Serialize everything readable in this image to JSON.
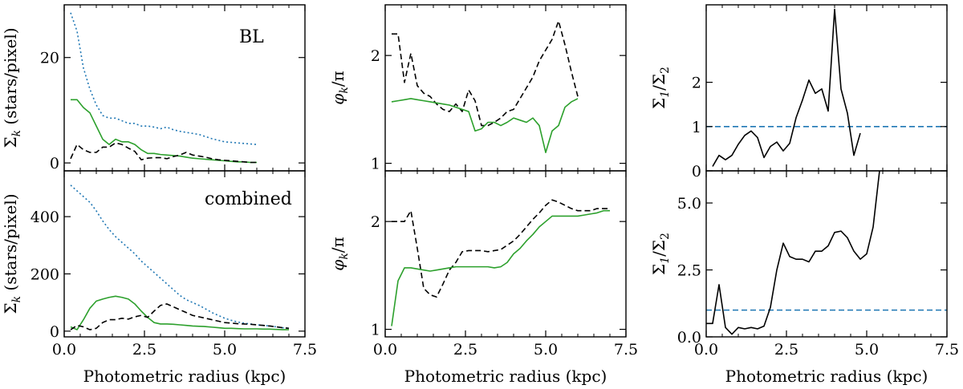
{
  "chart_data": [
    {
      "type": "line",
      "panel": "top-left",
      "ylabel": "Σ_k (stars/pixel)",
      "ylabel_text": {
        "main": "Σ",
        "sub": "k",
        "rest": " (stars/pixel)"
      },
      "xlabel": "",
      "annotation": "BL",
      "xlim": [
        0,
        7.5
      ],
      "ylim": [
        -1.5,
        30
      ],
      "xticks": [
        0,
        2.5,
        5,
        7.5
      ],
      "xtick_labels": [],
      "yticks": [
        0,
        20
      ],
      "ytick_labels": [
        "0",
        "20"
      ],
      "series": [
        {
          "name": "dotted-blue",
          "color": "#1f77b4",
          "dash": "dotted",
          "x": [
            0.2,
            0.4,
            0.6,
            0.8,
            1.0,
            1.2,
            1.4,
            1.6,
            1.8,
            2.0,
            2.2,
            2.4,
            2.6,
            2.8,
            3.0,
            3.2,
            3.4,
            3.6,
            3.8,
            4.0,
            4.2,
            4.4,
            4.6,
            4.8,
            5.0,
            5.2,
            5.4,
            5.6,
            5.8,
            6.0
          ],
          "y": [
            28.5,
            25,
            18,
            14,
            11,
            9,
            8.5,
            8.5,
            8,
            7.5,
            7.5,
            7,
            7,
            6.8,
            6.5,
            6.8,
            6.3,
            6,
            5.8,
            5.6,
            5.4,
            5,
            4.6,
            4.3,
            4,
            3.9,
            3.8,
            3.7,
            3.6,
            3.5
          ]
        },
        {
          "name": "solid-green",
          "color": "#2ca02c",
          "dash": "solid",
          "x": [
            0.2,
            0.4,
            0.6,
            0.8,
            1.0,
            1.2,
            1.4,
            1.6,
            1.8,
            2.0,
            2.2,
            2.4,
            2.6,
            2.8,
            3.0,
            3.2,
            3.4,
            3.6,
            3.8,
            4.0,
            4.2,
            4.4,
            4.6,
            4.8,
            5.0,
            5.2,
            5.4,
            5.6,
            5.8,
            6.0
          ],
          "y": [
            12,
            12,
            10.5,
            9.5,
            7,
            4.5,
            3.5,
            4.5,
            4,
            4,
            3.5,
            2.5,
            1.8,
            1.8,
            1.6,
            1.5,
            1.4,
            1.3,
            1.1,
            0.9,
            0.8,
            0.7,
            0.6,
            0.5,
            0.4,
            0.3,
            0.2,
            0.2,
            0.1,
            0.1
          ]
        },
        {
          "name": "dashed-black",
          "color": "#000000",
          "dash": "dashed",
          "x": [
            0.2,
            0.4,
            0.6,
            0.8,
            1.0,
            1.2,
            1.4,
            1.6,
            1.8,
            2.0,
            2.2,
            2.4,
            2.6,
            2.8,
            3.0,
            3.2,
            3.4,
            3.6,
            3.8,
            4.0,
            4.2,
            4.4,
            4.6,
            4.8,
            5.0,
            5.2,
            5.4,
            5.6,
            5.8,
            6.0
          ],
          "y": [
            0.8,
            3.5,
            2.5,
            2,
            2,
            3,
            3,
            3.8,
            3.5,
            2.8,
            2.2,
            0.6,
            0.9,
            1,
            1,
            0.8,
            1.2,
            1.5,
            2,
            1.5,
            1.3,
            1.1,
            0.8,
            0.6,
            0.5,
            0.4,
            0.3,
            0.2,
            0.1,
            0.1
          ]
        }
      ]
    },
    {
      "type": "line",
      "panel": "bottom-left",
      "ylabel": "Σ_k (stars/pixel)",
      "ylabel_text": {
        "main": "Σ",
        "sub": "k",
        "rest": " (stars/pixel)"
      },
      "xlabel": "Photometric radius (kpc)",
      "annotation": "combined",
      "xlim": [
        0,
        7.5
      ],
      "ylim": [
        -20,
        560
      ],
      "xticks": [
        0,
        2.5,
        5,
        7.5
      ],
      "xtick_labels": [
        "0.0",
        "2.5",
        "5.0",
        "7.5"
      ],
      "yticks": [
        0,
        200,
        400
      ],
      "ytick_labels": [
        "0",
        "200",
        "400"
      ],
      "series": [
        {
          "name": "dotted-blue",
          "color": "#1f77b4",
          "dash": "dotted",
          "x": [
            0.2,
            0.4,
            0.6,
            0.8,
            1.0,
            1.2,
            1.4,
            1.6,
            1.8,
            2.0,
            2.2,
            2.4,
            2.6,
            2.8,
            3.0,
            3.2,
            3.4,
            3.6,
            3.8,
            4.0,
            4.2,
            4.4,
            4.6,
            4.8,
            5.0,
            5.2,
            5.4,
            5.6,
            5.8,
            6.0,
            6.2,
            6.4,
            6.6,
            6.8,
            7.0
          ],
          "y": [
            510,
            490,
            470,
            450,
            420,
            385,
            355,
            330,
            310,
            290,
            270,
            245,
            225,
            205,
            185,
            165,
            145,
            125,
            110,
            100,
            90,
            78,
            65,
            55,
            45,
            38,
            32,
            28,
            25,
            22,
            20,
            18,
            15,
            12,
            10
          ]
        },
        {
          "name": "solid-green",
          "color": "#2ca02c",
          "dash": "solid",
          "x": [
            0.2,
            0.4,
            0.6,
            0.8,
            1.0,
            1.2,
            1.4,
            1.6,
            1.8,
            2.0,
            2.2,
            2.4,
            2.6,
            2.8,
            3.0,
            3.2,
            3.4,
            3.6,
            3.8,
            4.0,
            4.2,
            4.4,
            4.6,
            4.8,
            5.0,
            5.2,
            5.4,
            5.6,
            5.8,
            6.0,
            6.2,
            6.4,
            6.6,
            6.8,
            7.0
          ],
          "y": [
            15,
            5,
            40,
            80,
            105,
            112,
            118,
            122,
            118,
            112,
            95,
            70,
            48,
            30,
            25,
            25,
            24,
            22,
            20,
            18,
            17,
            16,
            14,
            12,
            10,
            10,
            9,
            8,
            8,
            8,
            7,
            7,
            6,
            5,
            5
          ]
        },
        {
          "name": "dashed-black",
          "color": "#000000",
          "dash": "dashed",
          "x": [
            0.2,
            0.4,
            0.6,
            0.8,
            1.0,
            1.2,
            1.4,
            1.6,
            1.8,
            2.0,
            2.2,
            2.4,
            2.6,
            2.8,
            3.0,
            3.2,
            3.4,
            3.6,
            3.8,
            4.0,
            4.2,
            4.4,
            4.6,
            4.8,
            5.0,
            5.2,
            5.4,
            5.6,
            5.8,
            6.0,
            6.2,
            6.4,
            6.6,
            6.8,
            7.0
          ],
          "y": [
            5,
            20,
            15,
            5,
            10,
            30,
            40,
            40,
            45,
            42,
            50,
            55,
            48,
            70,
            90,
            95,
            85,
            75,
            65,
            55,
            50,
            45,
            40,
            35,
            30,
            28,
            26,
            25,
            24,
            22,
            20,
            18,
            15,
            12,
            10
          ]
        }
      ]
    },
    {
      "type": "line",
      "panel": "top-middle",
      "ylabel": "φ_k/π",
      "ylabel_text": {
        "main": "φ",
        "sub": "k",
        "rest": "/π"
      },
      "xlabel": "",
      "xlim": [
        0,
        7.5
      ],
      "ylim": [
        0.93,
        2.47
      ],
      "xticks": [
        0,
        2.5,
        5,
        7.5
      ],
      "xtick_labels": [],
      "yticks": [
        1,
        2
      ],
      "ytick_labels": [
        "1",
        "2"
      ],
      "series": [
        {
          "name": "dashed-black",
          "color": "#000000",
          "dash": "dashed",
          "x": [
            0.2,
            0.4,
            0.6,
            0.8,
            1.0,
            1.2,
            1.4,
            1.6,
            1.8,
            2.0,
            2.2,
            2.4,
            2.6,
            2.8,
            3.0,
            3.2,
            3.4,
            3.6,
            3.8,
            4.0,
            4.2,
            4.4,
            4.6,
            4.8,
            5.0,
            5.2,
            5.4,
            5.6,
            5.8,
            6.0
          ],
          "y": [
            2.2,
            2.2,
            1.75,
            2.02,
            1.72,
            1.65,
            1.62,
            1.55,
            1.5,
            1.48,
            1.55,
            1.48,
            1.68,
            1.58,
            1.35,
            1.35,
            1.38,
            1.42,
            1.48,
            1.5,
            1.6,
            1.7,
            1.8,
            1.95,
            2.05,
            2.15,
            2.32,
            2.1,
            1.85,
            1.62
          ]
        },
        {
          "name": "solid-green",
          "color": "#2ca02c",
          "dash": "solid",
          "x": [
            0.2,
            0.4,
            0.6,
            0.8,
            1.0,
            1.2,
            1.4,
            1.6,
            1.8,
            2.0,
            2.2,
            2.4,
            2.6,
            2.8,
            3.0,
            3.2,
            3.4,
            3.6,
            3.8,
            4.0,
            4.2,
            4.4,
            4.6,
            4.8,
            5.0,
            5.2,
            5.4,
            5.6,
            5.8,
            6.0
          ],
          "y": [
            1.57,
            1.58,
            1.59,
            1.6,
            1.59,
            1.58,
            1.57,
            1.56,
            1.55,
            1.54,
            1.52,
            1.5,
            1.48,
            1.3,
            1.32,
            1.38,
            1.38,
            1.35,
            1.38,
            1.42,
            1.4,
            1.38,
            1.42,
            1.35,
            1.1,
            1.3,
            1.35,
            1.52,
            1.57,
            1.6
          ]
        }
      ]
    },
    {
      "type": "line",
      "panel": "bottom-middle",
      "ylabel": "φ_k/π",
      "ylabel_text": {
        "main": "φ",
        "sub": "k",
        "rest": "/π"
      },
      "xlabel": "Photometric radius (kpc)",
      "xlim": [
        0,
        7.5
      ],
      "ylim": [
        0.93,
        2.47
      ],
      "xticks": [
        0,
        2.5,
        5,
        7.5
      ],
      "xtick_labels": [
        "0.0",
        "2.5",
        "5.0",
        "7.5"
      ],
      "yticks": [
        1,
        2
      ],
      "ytick_labels": [
        "1",
        "2"
      ],
      "series": [
        {
          "name": "dashed-black",
          "color": "#000000",
          "dash": "dashed",
          "x": [
            0.2,
            0.4,
            0.6,
            0.8,
            1.0,
            1.2,
            1.4,
            1.6,
            1.8,
            2.0,
            2.2,
            2.4,
            2.6,
            2.8,
            3.0,
            3.2,
            3.4,
            3.6,
            3.8,
            4.0,
            4.2,
            4.4,
            4.6,
            4.8,
            5.0,
            5.2,
            5.4,
            5.6,
            5.8,
            6.0,
            6.2,
            6.4,
            6.6,
            6.8,
            7.0
          ],
          "y": [
            2.0,
            2.0,
            2.0,
            2.1,
            1.75,
            1.38,
            1.32,
            1.3,
            1.42,
            1.55,
            1.62,
            1.72,
            1.73,
            1.73,
            1.73,
            1.72,
            1.73,
            1.74,
            1.78,
            1.82,
            1.88,
            1.95,
            2.02,
            2.08,
            2.15,
            2.2,
            2.18,
            2.15,
            2.12,
            2.1,
            2.1,
            2.1,
            2.12,
            2.12,
            2.12
          ]
        },
        {
          "name": "solid-green",
          "color": "#2ca02c",
          "dash": "solid",
          "x": [
            0.2,
            0.4,
            0.6,
            0.8,
            1.0,
            1.2,
            1.4,
            1.6,
            1.8,
            2.0,
            2.2,
            2.4,
            2.6,
            2.8,
            3.0,
            3.2,
            3.4,
            3.6,
            3.8,
            4.0,
            4.2,
            4.4,
            4.6,
            4.8,
            5.0,
            5.2,
            5.4,
            5.6,
            5.8,
            6.0,
            6.2,
            6.4,
            6.6,
            6.8,
            7.0
          ],
          "y": [
            1.03,
            1.45,
            1.57,
            1.57,
            1.56,
            1.55,
            1.54,
            1.55,
            1.56,
            1.57,
            1.58,
            1.58,
            1.58,
            1.58,
            1.58,
            1.58,
            1.57,
            1.58,
            1.62,
            1.7,
            1.75,
            1.82,
            1.88,
            1.95,
            2.0,
            2.05,
            2.05,
            2.05,
            2.05,
            2.05,
            2.06,
            2.07,
            2.08,
            2.1,
            2.1
          ]
        }
      ]
    },
    {
      "type": "line",
      "panel": "top-right",
      "ylabel": "Σ_1/Σ_2",
      "ylabel_text": {
        "main": "Σ",
        "sub": "1",
        "rest": "/Σ",
        "sub2": "2"
      },
      "xlabel": "",
      "xlim": [
        0,
        7.5
      ],
      "ylim": [
        0,
        3.75
      ],
      "xticks": [
        0,
        2.5,
        5,
        7.5
      ],
      "xtick_labels": [],
      "yticks": [
        0,
        1,
        2
      ],
      "ytick_labels": [
        "0",
        "1",
        "2"
      ],
      "reference_line": {
        "y": 1.0,
        "color": "#1f77b4",
        "dash": "dashed"
      },
      "series": [
        {
          "name": "solid-black",
          "color": "#000000",
          "dash": "solid",
          "x": [
            0.2,
            0.4,
            0.6,
            0.8,
            1.0,
            1.2,
            1.4,
            1.6,
            1.8,
            2.0,
            2.2,
            2.4,
            2.6,
            2.8,
            3.0,
            3.2,
            3.4,
            3.6,
            3.8,
            4.0,
            4.2,
            4.4,
            4.6,
            4.8,
            5.0,
            5.2,
            5.4,
            5.6,
            5.8,
            6.0
          ],
          "y": [
            0.1,
            0.35,
            0.25,
            0.35,
            0.6,
            0.8,
            0.9,
            0.75,
            0.3,
            0.55,
            0.65,
            0.45,
            0.62,
            1.2,
            1.6,
            2.05,
            1.75,
            1.85,
            1.35,
            3.65,
            1.85,
            1.3,
            0.35,
            0.85,
            null,
            null,
            null,
            null,
            null,
            null
          ]
        }
      ]
    },
    {
      "type": "line",
      "panel": "bottom-right",
      "ylabel": "Σ_1/Σ_2",
      "ylabel_text": {
        "main": "Σ",
        "sub": "1",
        "rest": "/Σ",
        "sub2": "2"
      },
      "xlabel": "Photometric radius (kpc)",
      "xlim": [
        0,
        7.5
      ],
      "ylim": [
        0,
        6.2
      ],
      "xticks": [
        0,
        2.5,
        5,
        7.5
      ],
      "xtick_labels": [
        "0.0",
        "2.5",
        "5.0",
        "7.5"
      ],
      "yticks": [
        0,
        2.5,
        5
      ],
      "ytick_labels": [
        "0.0",
        "2.5",
        "5.0"
      ],
      "reference_line": {
        "y": 1.0,
        "color": "#1f77b4",
        "dash": "dashed"
      },
      "series": [
        {
          "name": "solid-black",
          "color": "#000000",
          "dash": "solid",
          "x": [
            0.0,
            0.2,
            0.4,
            0.6,
            0.8,
            1.0,
            1.2,
            1.4,
            1.6,
            1.8,
            2.0,
            2.2,
            2.4,
            2.6,
            2.8,
            3.0,
            3.2,
            3.4,
            3.6,
            3.8,
            4.0,
            4.2,
            4.4,
            4.6,
            4.8,
            5.0,
            5.2,
            5.4,
            5.6,
            5.8,
            6.0,
            6.2,
            6.4,
            6.6,
            6.8,
            7.0,
            7.1
          ],
          "y": [
            0.5,
            0.5,
            1.95,
            0.35,
            0.1,
            0.35,
            0.3,
            0.35,
            0.3,
            0.4,
            1.1,
            2.5,
            3.5,
            3.0,
            2.9,
            2.9,
            2.8,
            3.2,
            3.2,
            3.4,
            3.9,
            3.95,
            3.7,
            3.2,
            2.9,
            3.1,
            4.1,
            6.2,
            null,
            null,
            null,
            null,
            null,
            null,
            null,
            null,
            null
          ]
        }
      ]
    }
  ]
}
